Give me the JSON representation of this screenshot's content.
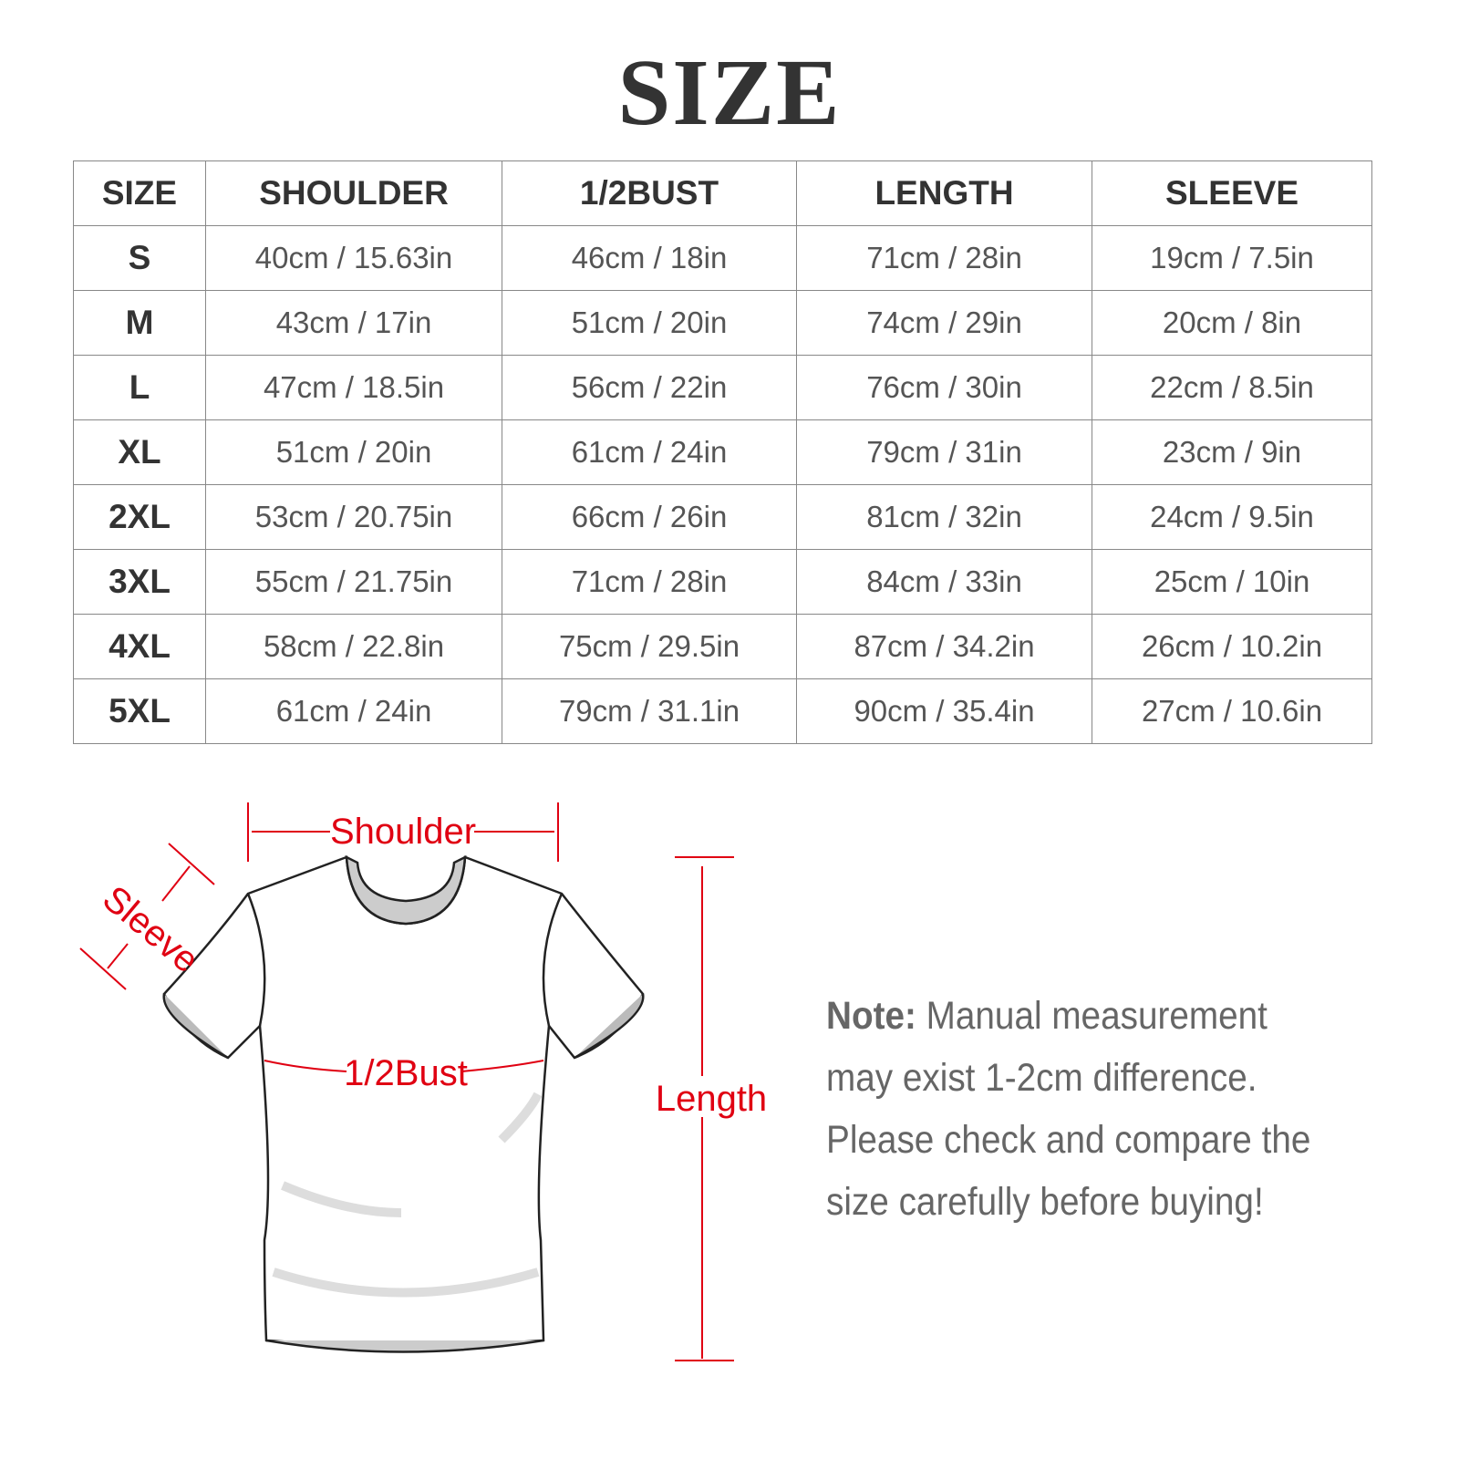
{
  "title": "SIZE",
  "table": {
    "headers": [
      "SIZE",
      "SHOULDER",
      "1/2BUST",
      "LENGTH",
      "SLEEVE"
    ],
    "rows": [
      [
        "S",
        "40cm / 15.63in",
        "46cm / 18in",
        "71cm / 28in",
        "19cm / 7.5in"
      ],
      [
        "M",
        "43cm / 17in",
        "51cm / 20in",
        "74cm / 29in",
        "20cm / 8in"
      ],
      [
        "L",
        "47cm / 18.5in",
        "56cm / 22in",
        "76cm / 30in",
        "22cm / 8.5in"
      ],
      [
        "XL",
        "51cm / 20in",
        "61cm / 24in",
        "79cm / 31in",
        "23cm / 9in"
      ],
      [
        "2XL",
        "53cm / 20.75in",
        "66cm / 26in",
        "81cm / 32in",
        "24cm / 9.5in"
      ],
      [
        "3XL",
        "55cm / 21.75in",
        "71cm / 28in",
        "84cm / 33in",
        "25cm / 10in"
      ],
      [
        "4XL",
        "58cm / 22.8in",
        "75cm / 29.5in",
        "87cm / 34.2in",
        "26cm / 10.2in"
      ],
      [
        "5XL",
        "61cm / 24in",
        "79cm / 31.1in",
        "90cm / 35.4in",
        "27cm / 10.6in"
      ]
    ]
  },
  "diagram": {
    "shoulder": "Shoulder",
    "sleeve": "Sleeve",
    "bust": "1/2Bust",
    "length": "Length",
    "accent_color": "#e00012"
  },
  "note": {
    "label": "Note:",
    "text": " Manual measurement may exist 1-2cm difference. Please check and compare the size carefully before buying!"
  }
}
